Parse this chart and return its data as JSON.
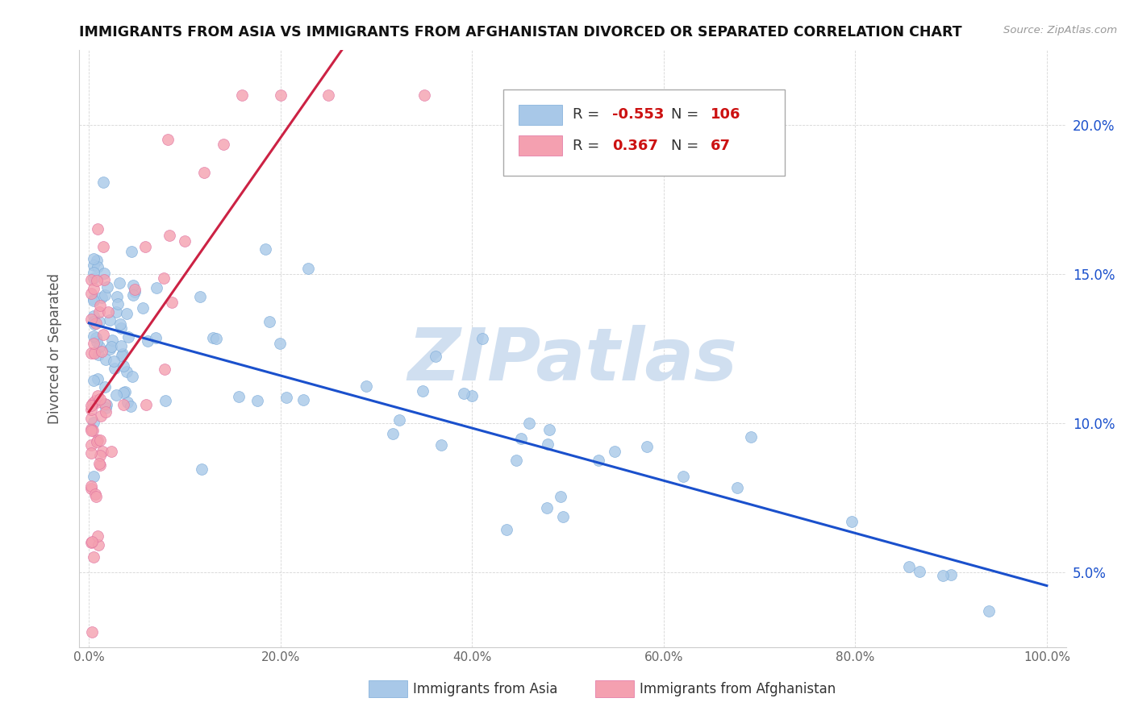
{
  "title": "IMMIGRANTS FROM ASIA VS IMMIGRANTS FROM AFGHANISTAN DIVORCED OR SEPARATED CORRELATION CHART",
  "source_text": "Source: ZipAtlas.com",
  "ylabel": "Divorced or Separated",
  "legend_label1": "Immigrants from Asia",
  "legend_label2": "Immigrants from Afghanistan",
  "R1": -0.553,
  "N1": 106,
  "R2": 0.367,
  "N2": 67,
  "color_asia": "#a8c8e8",
  "color_afghanistan": "#f4a0b0",
  "color_line_asia": "#1a50cc",
  "color_line_afghanistan": "#cc2244",
  "watermark": "ZIPatlas",
  "watermark_color": "#d0dff0",
  "xlim": [
    0.0,
    1.0
  ],
  "ylim": [
    0.025,
    0.225
  ],
  "xtick_labels": [
    "0.0%",
    "20.0%",
    "40.0%",
    "60.0%",
    "80.0%",
    "100.0%"
  ],
  "xtick_vals": [
    0.0,
    0.2,
    0.4,
    0.6,
    0.8,
    1.0
  ],
  "ytick_labels": [
    "5.0%",
    "10.0%",
    "15.0%",
    "20.0%"
  ],
  "ytick_vals": [
    0.05,
    0.1,
    0.15,
    0.2
  ]
}
